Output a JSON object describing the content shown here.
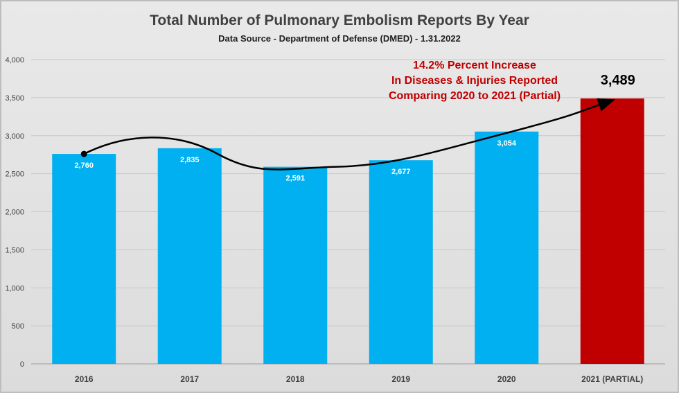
{
  "chart_data": {
    "type": "bar",
    "title": "Total Number of Pulmonary Embolism Reports By Year",
    "subtitle": "Data Source - Department of Defense (DMED) - 1.31.2022",
    "categories": [
      "2016",
      "2017",
      "2018",
      "2019",
      "2020",
      "2021 (PARTIAL)"
    ],
    "values": [
      2760,
      2835,
      2591,
      2677,
      3054,
      3489
    ],
    "data_labels": [
      "2,760",
      "2,835",
      "2,591",
      "2,677",
      "3,054",
      "3,489"
    ],
    "ylim": [
      0,
      4000
    ],
    "yticks": [
      0,
      500,
      1000,
      1500,
      2000,
      2500,
      3000,
      3500,
      4000
    ],
    "ytick_labels": [
      "0",
      "500",
      "1,000",
      "1,500",
      "2,000",
      "2,500",
      "3,000",
      "3,500",
      "4,000"
    ],
    "grid": true,
    "colors": {
      "bar": "#00b0f0",
      "highlight_bar": "#c00000",
      "annotation": "#c00000"
    },
    "annotation": [
      "14.2% Percent Increase",
      "In Diseases & Injuries Reported",
      "Comparing 2020 to 2021 (Partial)"
    ],
    "trend_arrow": {
      "from": "2016",
      "to": "2021 (PARTIAL)"
    }
  }
}
